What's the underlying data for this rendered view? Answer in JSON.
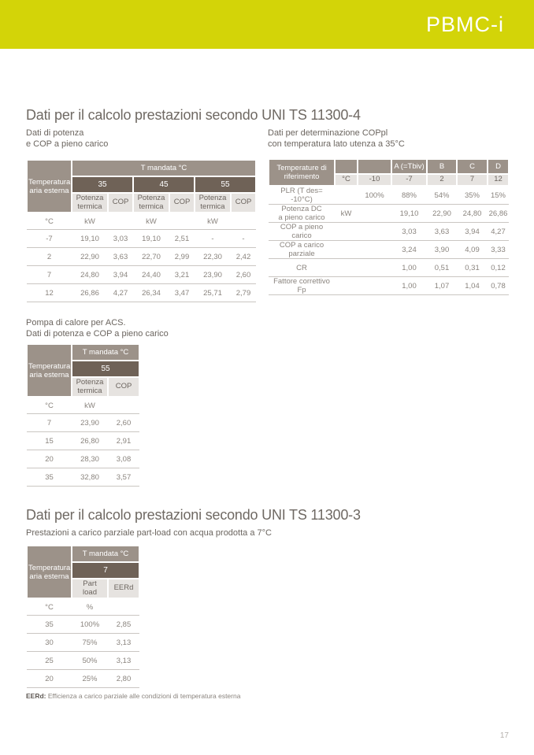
{
  "page": {
    "brand": "PBMC-i",
    "accent_color": "#d3d408",
    "page_number": "17",
    "footnote_term": "EERd:",
    "footnote_text": " Efficienza a carico parziale alle condizioni di temperatura esterna"
  },
  "section_11300_4": {
    "title": "Dati per il calcolo prestazioni secondo UNI TS 11300-4",
    "power_cop_table": {
      "subtitle": "Dati di potenza\ne COP a pieno carico",
      "corner": "Temperatura aria esterna",
      "span_header": "T mandata °C",
      "flow_temps": [
        "35",
        "45",
        "55"
      ],
      "sub_headers": [
        "Potenza\ntermica",
        "COP"
      ],
      "unit_row": [
        "°C",
        "kW",
        "",
        "kW",
        "",
        "kW",
        ""
      ],
      "rows": [
        {
          "temp": "-7",
          "v0": "19,10",
          "v1": "3,03",
          "v2": "19,10",
          "v3": "2,51",
          "v4": "-",
          "v5": "-"
        },
        {
          "temp": "2",
          "v0": "22,90",
          "v1": "3,63",
          "v2": "22,70",
          "v3": "2,99",
          "v4": "22,30",
          "v5": "2,42"
        },
        {
          "temp": "7",
          "v0": "24,80",
          "v1": "3,94",
          "v2": "24,40",
          "v3": "3,21",
          "v4": "23,90",
          "v5": "2,60"
        },
        {
          "temp": "12",
          "v0": "26,86",
          "v1": "4,27",
          "v2": "26,34",
          "v3": "3,47",
          "v4": "25,71",
          "v5": "2,79"
        }
      ]
    },
    "coppl_table": {
      "subtitle": "Dati per determinazione COPpl\ncon temperatura lato utenza a 35°C",
      "corner": "Temperature di riferimento",
      "top_headers": [
        "",
        "",
        "A (=Tbiv)",
        "B",
        "C",
        "D"
      ],
      "ref_temps": [
        "°C",
        "-10",
        "-7",
        "2",
        "7",
        "12"
      ],
      "rows": [
        {
          "label": "PLR (T des= -10°C)",
          "unit": "",
          "v0": "100%",
          "v1": "88%",
          "v2": "54%",
          "v3": "35%",
          "v4": "15%"
        },
        {
          "label": "Potenza DC\na pieno carico",
          "unit": "kW",
          "v0": "",
          "v1": "19,10",
          "v2": "22,90",
          "v3": "24,80",
          "v4": "26,86"
        },
        {
          "label": "COP a pieno carico",
          "unit": "",
          "v0": "",
          "v1": "3,03",
          "v2": "3,63",
          "v3": "3,94",
          "v4": "4,27"
        },
        {
          "label": "COP a carico parziale",
          "unit": "",
          "v0": "",
          "v1": "3,24",
          "v2": "3,90",
          "v3": "4,09",
          "v4": "3,33"
        },
        {
          "label": "CR",
          "unit": "",
          "v0": "",
          "v1": "1,00",
          "v2": "0,51",
          "v3": "0,31",
          "v4": "0,12"
        },
        {
          "label": "Fattore correttivo Fp",
          "unit": "",
          "v0": "",
          "v1": "1,00",
          "v2": "1,07",
          "v3": "1,04",
          "v4": "0,78"
        }
      ]
    },
    "acs_table": {
      "subtitle": "Pompa di calore per ACS.\nDati di potenza e COP a pieno carico",
      "corner": "Temperatura aria esterna",
      "span_header": "T mandata °C",
      "flow_temp": "55",
      "sub_headers": [
        "Potenza\ntermica",
        "COP"
      ],
      "unit_row": [
        "°C",
        "kW",
        ""
      ],
      "rows": [
        {
          "temp": "7",
          "v0": "23,90",
          "v1": "2,60"
        },
        {
          "temp": "15",
          "v0": "26,80",
          "v1": "2,91"
        },
        {
          "temp": "20",
          "v0": "28,30",
          "v1": "3,08"
        },
        {
          "temp": "35",
          "v0": "32,80",
          "v1": "3,57"
        }
      ]
    }
  },
  "section_11300_3": {
    "title": "Dati per il calcolo prestazioni secondo UNI TS 11300-3",
    "partload_table": {
      "subtitle": "Prestazioni a carico parziale part-load con acqua prodotta a 7°C",
      "corner": "Temperatura aria esterna",
      "span_header": "T mandata °C",
      "flow_temp": "7",
      "sub_headers": [
        "Part\nload",
        "EERd"
      ],
      "unit_row": [
        "°C",
        "%",
        ""
      ],
      "rows": [
        {
          "temp": "35",
          "v0": "100%",
          "v1": "2,85"
        },
        {
          "temp": "30",
          "v0": "75%",
          "v1": "3,13"
        },
        {
          "temp": "25",
          "v0": "50%",
          "v1": "3,13"
        },
        {
          "temp": "20",
          "v0": "25%",
          "v1": "2,80"
        }
      ]
    }
  }
}
